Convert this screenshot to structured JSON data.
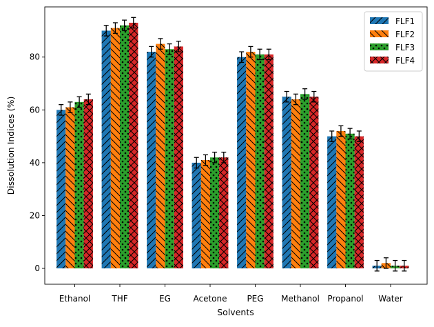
{
  "chart_data": {
    "type": "bar",
    "categories": [
      "Ethanol",
      "THF",
      "EG",
      "Acetone",
      "PEG",
      "Methanol",
      "Propanol",
      "Water"
    ],
    "xlabel": "Solvents",
    "ylabel": "Dissolution Indices (%)",
    "ylim": [
      -6,
      99
    ],
    "yticks": [
      0,
      20,
      40,
      60,
      80
    ],
    "grid": false,
    "legend_position": "top-right",
    "error_bars": true,
    "series": [
      {
        "name": "FLF1",
        "color": "#1f77b4",
        "hatch": "forward-slash",
        "values": [
          60,
          90,
          82,
          40,
          80,
          65,
          50,
          1
        ],
        "errors": [
          2,
          2,
          2,
          2,
          2,
          2,
          2,
          2
        ]
      },
      {
        "name": "FLF2",
        "color": "#ff7f0e",
        "hatch": "back-slash",
        "values": [
          61,
          91,
          85,
          41,
          82,
          64,
          52,
          2
        ],
        "errors": [
          2,
          2,
          2,
          2,
          2,
          2,
          2,
          2
        ]
      },
      {
        "name": "FLF3",
        "color": "#2ca02c",
        "hatch": "dots",
        "values": [
          63,
          92,
          83,
          42,
          81,
          66,
          51,
          1
        ],
        "errors": [
          2,
          2,
          2,
          2,
          2,
          2,
          2,
          2
        ]
      },
      {
        "name": "FLF4",
        "color": "#d62728",
        "hatch": "cross",
        "values": [
          64,
          93,
          84,
          42,
          81,
          65,
          50,
          1
        ],
        "errors": [
          2,
          2,
          2,
          2,
          2,
          2,
          2,
          2
        ]
      }
    ]
  }
}
